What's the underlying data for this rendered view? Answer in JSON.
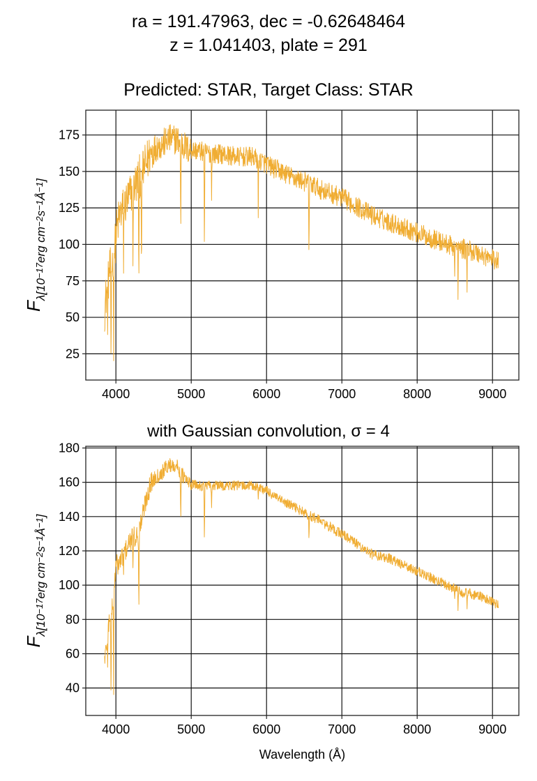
{
  "header": {
    "title_line1": "ra = 191.47963, dec = -0.62648464",
    "title_line2": "z = 1.041403, plate = 291",
    "title_line3": "Predicted: STAR, Target Class: STAR"
  },
  "colors": {
    "spectrum": "#f0ad33",
    "grid": "#111111",
    "axes": "#222222"
  },
  "chart_data": [
    {
      "type": "line",
      "title": "Predicted: STAR, Target Class: STAR",
      "xlabel": "",
      "ylabel": "F_λ[10^-17 erg cm^-2 s^-1 Å^-1]",
      "xlim": [
        3600,
        9350
      ],
      "ylim": [
        7,
        192
      ],
      "xticks": [
        4000,
        5000,
        6000,
        7000,
        8000,
        9000
      ],
      "yticks": [
        25,
        50,
        75,
        100,
        125,
        150,
        175
      ],
      "grid": true,
      "series": [
        {
          "x": [
            3850,
            3870,
            3890,
            3910,
            3930,
            3950,
            3970,
            3990,
            4010,
            4050,
            4100,
            4150,
            4200,
            4250,
            4300,
            4350,
            4400,
            4450,
            4500,
            4550,
            4600,
            4650,
            4700,
            4750,
            4800,
            4850,
            4900,
            4950,
            5000,
            5100,
            5200,
            5300,
            5400,
            5500,
            5600,
            5700,
            5800,
            5900,
            6000,
            6100,
            6200,
            6300,
            6400,
            6500,
            6600,
            6700,
            6800,
            6900,
            7000,
            7100,
            7200,
            7300,
            7400,
            7500,
            7600,
            7700,
            7800,
            7900,
            8000,
            8100,
            8200,
            8300,
            8400,
            8500,
            8600,
            8700,
            8800,
            8900,
            9000,
            9080
          ],
          "y": [
            55,
            65,
            70,
            80,
            85,
            88,
            92,
            100,
            110,
            120,
            125,
            130,
            135,
            140,
            145,
            150,
            155,
            162,
            165,
            168,
            168,
            170,
            172,
            172,
            172,
            170,
            168,
            165,
            165,
            164,
            163,
            162,
            162,
            161,
            160,
            160,
            160,
            158,
            155,
            152,
            150,
            147,
            145,
            143,
            141,
            138,
            136,
            134,
            132,
            129,
            126,
            123,
            120,
            118,
            116,
            114,
            112,
            110,
            108,
            106,
            104,
            102,
            100,
            98,
            97,
            96,
            94,
            92,
            90,
            88
          ],
          "absorption_lines": [
            {
              "x": 3890,
              "y": 38
            },
            {
              "x": 3935,
              "y": 16
            },
            {
              "x": 3970,
              "y": 20
            },
            {
              "x": 4102,
              "y": 80
            },
            {
              "x": 4226,
              "y": 85
            },
            {
              "x": 4305,
              "y": 70
            },
            {
              "x": 4340,
              "y": 75
            },
            {
              "x": 4861,
              "y": 106
            },
            {
              "x": 5175,
              "y": 93
            },
            {
              "x": 5270,
              "y": 130
            },
            {
              "x": 5890,
              "y": 118
            },
            {
              "x": 6563,
              "y": 90
            },
            {
              "x": 8498,
              "y": 78
            },
            {
              "x": 8542,
              "y": 62
            },
            {
              "x": 8662,
              "y": 67
            }
          ]
        }
      ]
    },
    {
      "type": "line",
      "title": "with Gaussian convolution, σ = 4",
      "xlabel": "Wavelength (Å)",
      "ylabel": "F_λ[10^-17 erg cm^-2 s^-1 Å^-1]",
      "xlim": [
        3600,
        9350
      ],
      "ylim": [
        24,
        181
      ],
      "xticks": [
        4000,
        5000,
        6000,
        7000,
        8000,
        9000
      ],
      "yticks": [
        40,
        60,
        80,
        100,
        120,
        140,
        160,
        180
      ],
      "grid": true,
      "series": [
        {
          "x": [
            3850,
            3870,
            3890,
            3910,
            3930,
            3950,
            3970,
            3990,
            4010,
            4050,
            4100,
            4150,
            4200,
            4250,
            4300,
            4350,
            4400,
            4450,
            4500,
            4550,
            4600,
            4650,
            4700,
            4750,
            4800,
            4850,
            4900,
            4950,
            5000,
            5100,
            5200,
            5300,
            5400,
            5500,
            5600,
            5700,
            5800,
            5900,
            6000,
            6100,
            6200,
            6300,
            6400,
            6500,
            6600,
            6700,
            6800,
            6900,
            7000,
            7100,
            7200,
            7300,
            7400,
            7500,
            7600,
            7700,
            7800,
            7900,
            8000,
            8100,
            8200,
            8300,
            8400,
            8500,
            8600,
            8700,
            8800,
            8900,
            9000,
            9080
          ],
          "y": [
            58,
            62,
            70,
            80,
            85,
            88,
            90,
            108,
            112,
            113,
            118,
            122,
            126,
            128,
            130,
            140,
            150,
            158,
            162,
            164,
            165,
            168,
            170,
            170,
            170,
            166,
            163,
            160,
            159,
            158,
            158,
            158,
            158,
            158,
            158,
            158,
            158,
            157,
            155,
            152,
            149,
            147,
            145,
            142,
            140,
            138,
            135,
            132,
            130,
            127,
            124,
            121,
            118,
            117,
            116,
            114,
            112,
            110,
            108,
            106,
            104,
            102,
            100,
            98,
            96,
            95,
            94,
            92,
            90,
            88
          ],
          "absorption_lines": [
            {
              "x": 3890,
              "y": 52
            },
            {
              "x": 3935,
              "y": 31
            },
            {
              "x": 3970,
              "y": 36
            },
            {
              "x": 4102,
              "y": 106
            },
            {
              "x": 4226,
              "y": 110
            },
            {
              "x": 4305,
              "y": 83
            },
            {
              "x": 4861,
              "y": 137
            },
            {
              "x": 5175,
              "y": 124
            },
            {
              "x": 5270,
              "y": 145
            },
            {
              "x": 5890,
              "y": 150
            },
            {
              "x": 6563,
              "y": 126
            },
            {
              "x": 8498,
              "y": 92
            },
            {
              "x": 8542,
              "y": 85
            },
            {
              "x": 8662,
              "y": 86
            }
          ]
        }
      ]
    }
  ]
}
